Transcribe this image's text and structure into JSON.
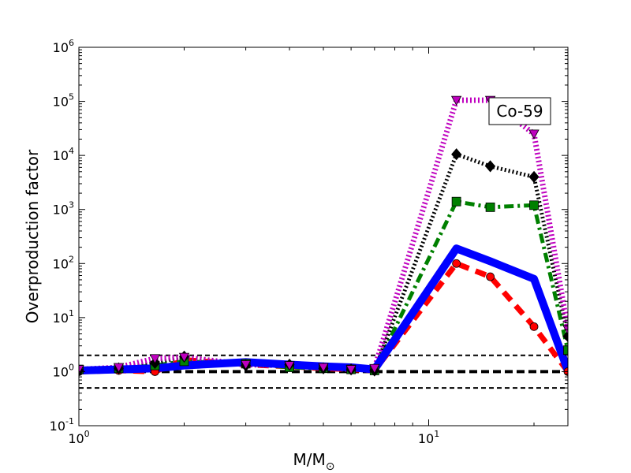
{
  "chart_data": {
    "type": "line",
    "xlabel": "M/M",
    "xlabel_subscript": "⊙",
    "ylabel": "Overproduction factor",
    "xscale": "log",
    "yscale": "log",
    "xlim": [
      1,
      25
    ],
    "ylim": [
      0.1,
      1000000
    ],
    "x_ticks": [
      {
        "value": 1,
        "base": "10",
        "exp": "0"
      },
      {
        "value": 10,
        "base": "10",
        "exp": "1"
      }
    ],
    "y_ticks": [
      {
        "value": 0.1,
        "base": "10",
        "exp": "-1"
      },
      {
        "value": 1,
        "base": "10",
        "exp": "0"
      },
      {
        "value": 10,
        "base": "10",
        "exp": "1"
      },
      {
        "value": 100,
        "base": "10",
        "exp": "2"
      },
      {
        "value": 1000,
        "base": "10",
        "exp": "3"
      },
      {
        "value": 10000,
        "base": "10",
        "exp": "4"
      },
      {
        "value": 100000,
        "base": "10",
        "exp": "5"
      },
      {
        "value": 1000000,
        "base": "10",
        "exp": "6"
      }
    ],
    "annotation": "Co-59",
    "reference_lines": [
      {
        "y": 2.0,
        "style": "dashed",
        "width": 2
      },
      {
        "y": 1.0,
        "style": "dashed",
        "width": 4
      },
      {
        "y": 0.5,
        "style": "dashed",
        "width": 2
      }
    ],
    "x": [
      1.0,
      1.3,
      1.65,
      2.0,
      3.0,
      4.0,
      5.0,
      6.0,
      7.0,
      12.0,
      15.0,
      20.0,
      25.0
    ],
    "series": [
      {
        "color": "#ff0000",
        "line_style": "dashed",
        "marker": "circle",
        "values": [
          1.0,
          1.05,
          1.0,
          1.65,
          1.35,
          1.25,
          1.15,
          1.1,
          1.05,
          100,
          57,
          6.8,
          1.0
        ]
      },
      {
        "color": "#0000ff",
        "line_style": "solid",
        "marker": "none",
        "values": [
          1.05,
          1.1,
          1.15,
          1.3,
          1.5,
          1.35,
          1.25,
          1.2,
          1.1,
          190,
          110,
          52,
          1.05
        ]
      },
      {
        "color": "#008000",
        "line_style": "dashdot",
        "marker": "square",
        "values": [
          1.1,
          1.15,
          1.3,
          1.55,
          1.4,
          1.2,
          1.15,
          1.1,
          1.05,
          1400,
          1100,
          1200,
          2.5
        ]
      },
      {
        "color": "#000000",
        "line_style": "dotted",
        "marker": "diamond",
        "values": [
          1.05,
          1.15,
          1.45,
          1.9,
          1.3,
          1.35,
          1.15,
          1.1,
          1.05,
          10500,
          6300,
          4000,
          4.5
        ]
      },
      {
        "color": "#bf00bf",
        "line_style": "dotted",
        "marker": "triangle_down",
        "values": [
          1.1,
          1.2,
          1.75,
          1.85,
          1.35,
          1.3,
          1.2,
          1.1,
          1.15,
          105000,
          105000,
          25000,
          6.0
        ]
      }
    ]
  }
}
